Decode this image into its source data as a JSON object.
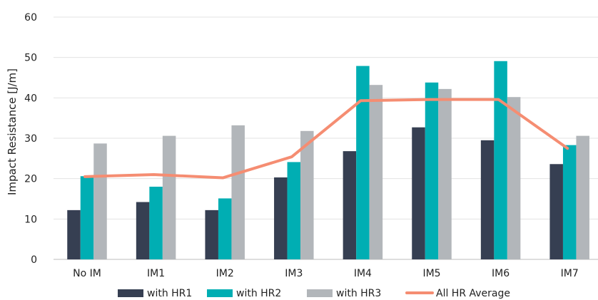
{
  "chart_data": {
    "type": "bar",
    "title": "",
    "xlabel": "",
    "ylabel": "Impact Resistance [J/m]",
    "ylim": [
      0,
      60
    ],
    "yticks": [
      0,
      10,
      20,
      30,
      40,
      50,
      60
    ],
    "grid": true,
    "legend_position": "bottom",
    "categories": [
      "No IM",
      "IM1",
      "IM2",
      "IM3",
      "IM4",
      "IM5",
      "IM6",
      "IM7"
    ],
    "series": [
      {
        "name": "with HR1",
        "kind": "bar",
        "color": "#363f52",
        "values": [
          12.2,
          14.2,
          12.2,
          20.3,
          26.8,
          32.7,
          29.5,
          23.6
        ]
      },
      {
        "name": "with HR2",
        "kind": "bar",
        "color": "#00aeb3",
        "values": [
          20.6,
          18.0,
          15.1,
          24.1,
          47.9,
          43.8,
          49.1,
          28.3
        ]
      },
      {
        "name": "with HR3",
        "kind": "bar",
        "color": "#b2b6ba",
        "values": [
          28.7,
          30.6,
          33.2,
          31.8,
          43.2,
          42.2,
          40.2,
          30.6
        ]
      },
      {
        "name": "All HR Average",
        "kind": "line",
        "color": "#f58d72",
        "values": [
          20.5,
          21.0,
          20.2,
          25.4,
          39.3,
          39.6,
          39.6,
          27.5
        ]
      }
    ]
  }
}
